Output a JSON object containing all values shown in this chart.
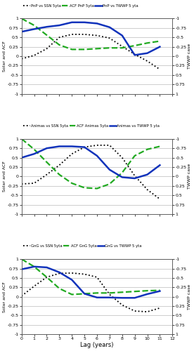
{
  "panels": [
    {
      "legend": [
        "PnP vs SSN 5yta",
        "ACF PnP 5yta",
        "PnP vs TWWP 5 yta"
      ],
      "ssn": [
        -0.07,
        0.02,
        0.2,
        0.5,
        0.58,
        0.58,
        0.55,
        0.48,
        0.26,
        0.05,
        -0.13,
        -0.35
      ],
      "acf": [
        1.0,
        0.82,
        0.56,
        0.3,
        0.18,
        0.18,
        0.2,
        0.22,
        0.22,
        0.28,
        0.35,
        0.4
      ],
      "twwp": [
        0.65,
        0.72,
        0.78,
        0.82,
        0.9,
        0.9,
        0.87,
        0.77,
        0.55,
        0.03,
        0.08,
        0.25
      ]
    },
    {
      "legend": [
        "Animas vs SSN 5yta",
        "ACF Animas 5yta",
        "Animas vs TWWP 5 yta"
      ],
      "ssn": [
        -0.2,
        -0.18,
        0.05,
        0.3,
        0.6,
        0.78,
        0.83,
        0.83,
        0.5,
        0.02,
        -0.35,
        -0.6
      ],
      "acf": [
        1.0,
        0.72,
        0.38,
        0.05,
        -0.18,
        -0.3,
        -0.32,
        -0.2,
        0.1,
        0.55,
        0.72,
        0.8
      ],
      "twwp": [
        0.5,
        0.6,
        0.75,
        0.8,
        0.8,
        0.78,
        0.55,
        0.18,
        -0.02,
        -0.05,
        0.05,
        0.3
      ]
    },
    {
      "legend": [
        "GnG vs SSN 5yta",
        "ACF GnG 5yta",
        "GnG vs TWWP 5 yta"
      ],
      "ssn": [
        0.02,
        0.28,
        0.52,
        0.62,
        0.63,
        0.6,
        0.52,
        0.06,
        -0.22,
        -0.38,
        -0.4,
        -0.3
      ],
      "acf": [
        1.0,
        0.8,
        0.52,
        0.22,
        0.06,
        0.08,
        0.1,
        0.1,
        0.12,
        0.14,
        0.16,
        0.17
      ],
      "twwp": [
        0.73,
        0.8,
        0.78,
        0.65,
        0.45,
        0.08,
        -0.02,
        -0.02,
        -0.03,
        -0.03,
        0.07,
        0.15
      ]
    }
  ],
  "lags": [
    0,
    1,
    2,
    3,
    4,
    5,
    6,
    7,
    8,
    9,
    10,
    11
  ],
  "xlim": [
    0,
    12
  ],
  "ylim_left": [
    -1,
    1
  ],
  "ylim_right": [
    -1,
    1
  ],
  "xlabel": "Lag (years)",
  "ylabel_left": "Solar and ACF",
  "ylabel_right": "TWWP case",
  "yticks": [
    -1,
    -0.75,
    -0.5,
    -0.25,
    0,
    0.25,
    0.5,
    0.75,
    1
  ],
  "ytick_labels_left": [
    "-1",
    "-0.75",
    "-0.5",
    "-0.25",
    "0",
    "0.25",
    "0.5",
    "0.75",
    "1"
  ],
  "ytick_labels_right": [
    "1",
    "0.75",
    "0.5",
    "0.25",
    "0",
    "-0.25",
    "-0.5",
    "-0.75",
    "-1"
  ],
  "xticks": [
    0,
    1,
    2,
    3,
    4,
    5,
    6,
    7,
    8,
    9,
    10,
    11,
    12
  ],
  "colors": {
    "ssn": "#000000",
    "acf": "#22aa22",
    "twwp": "#1133bb"
  },
  "bg_color": "#ffffff",
  "grid_color": "#bbbbbb"
}
